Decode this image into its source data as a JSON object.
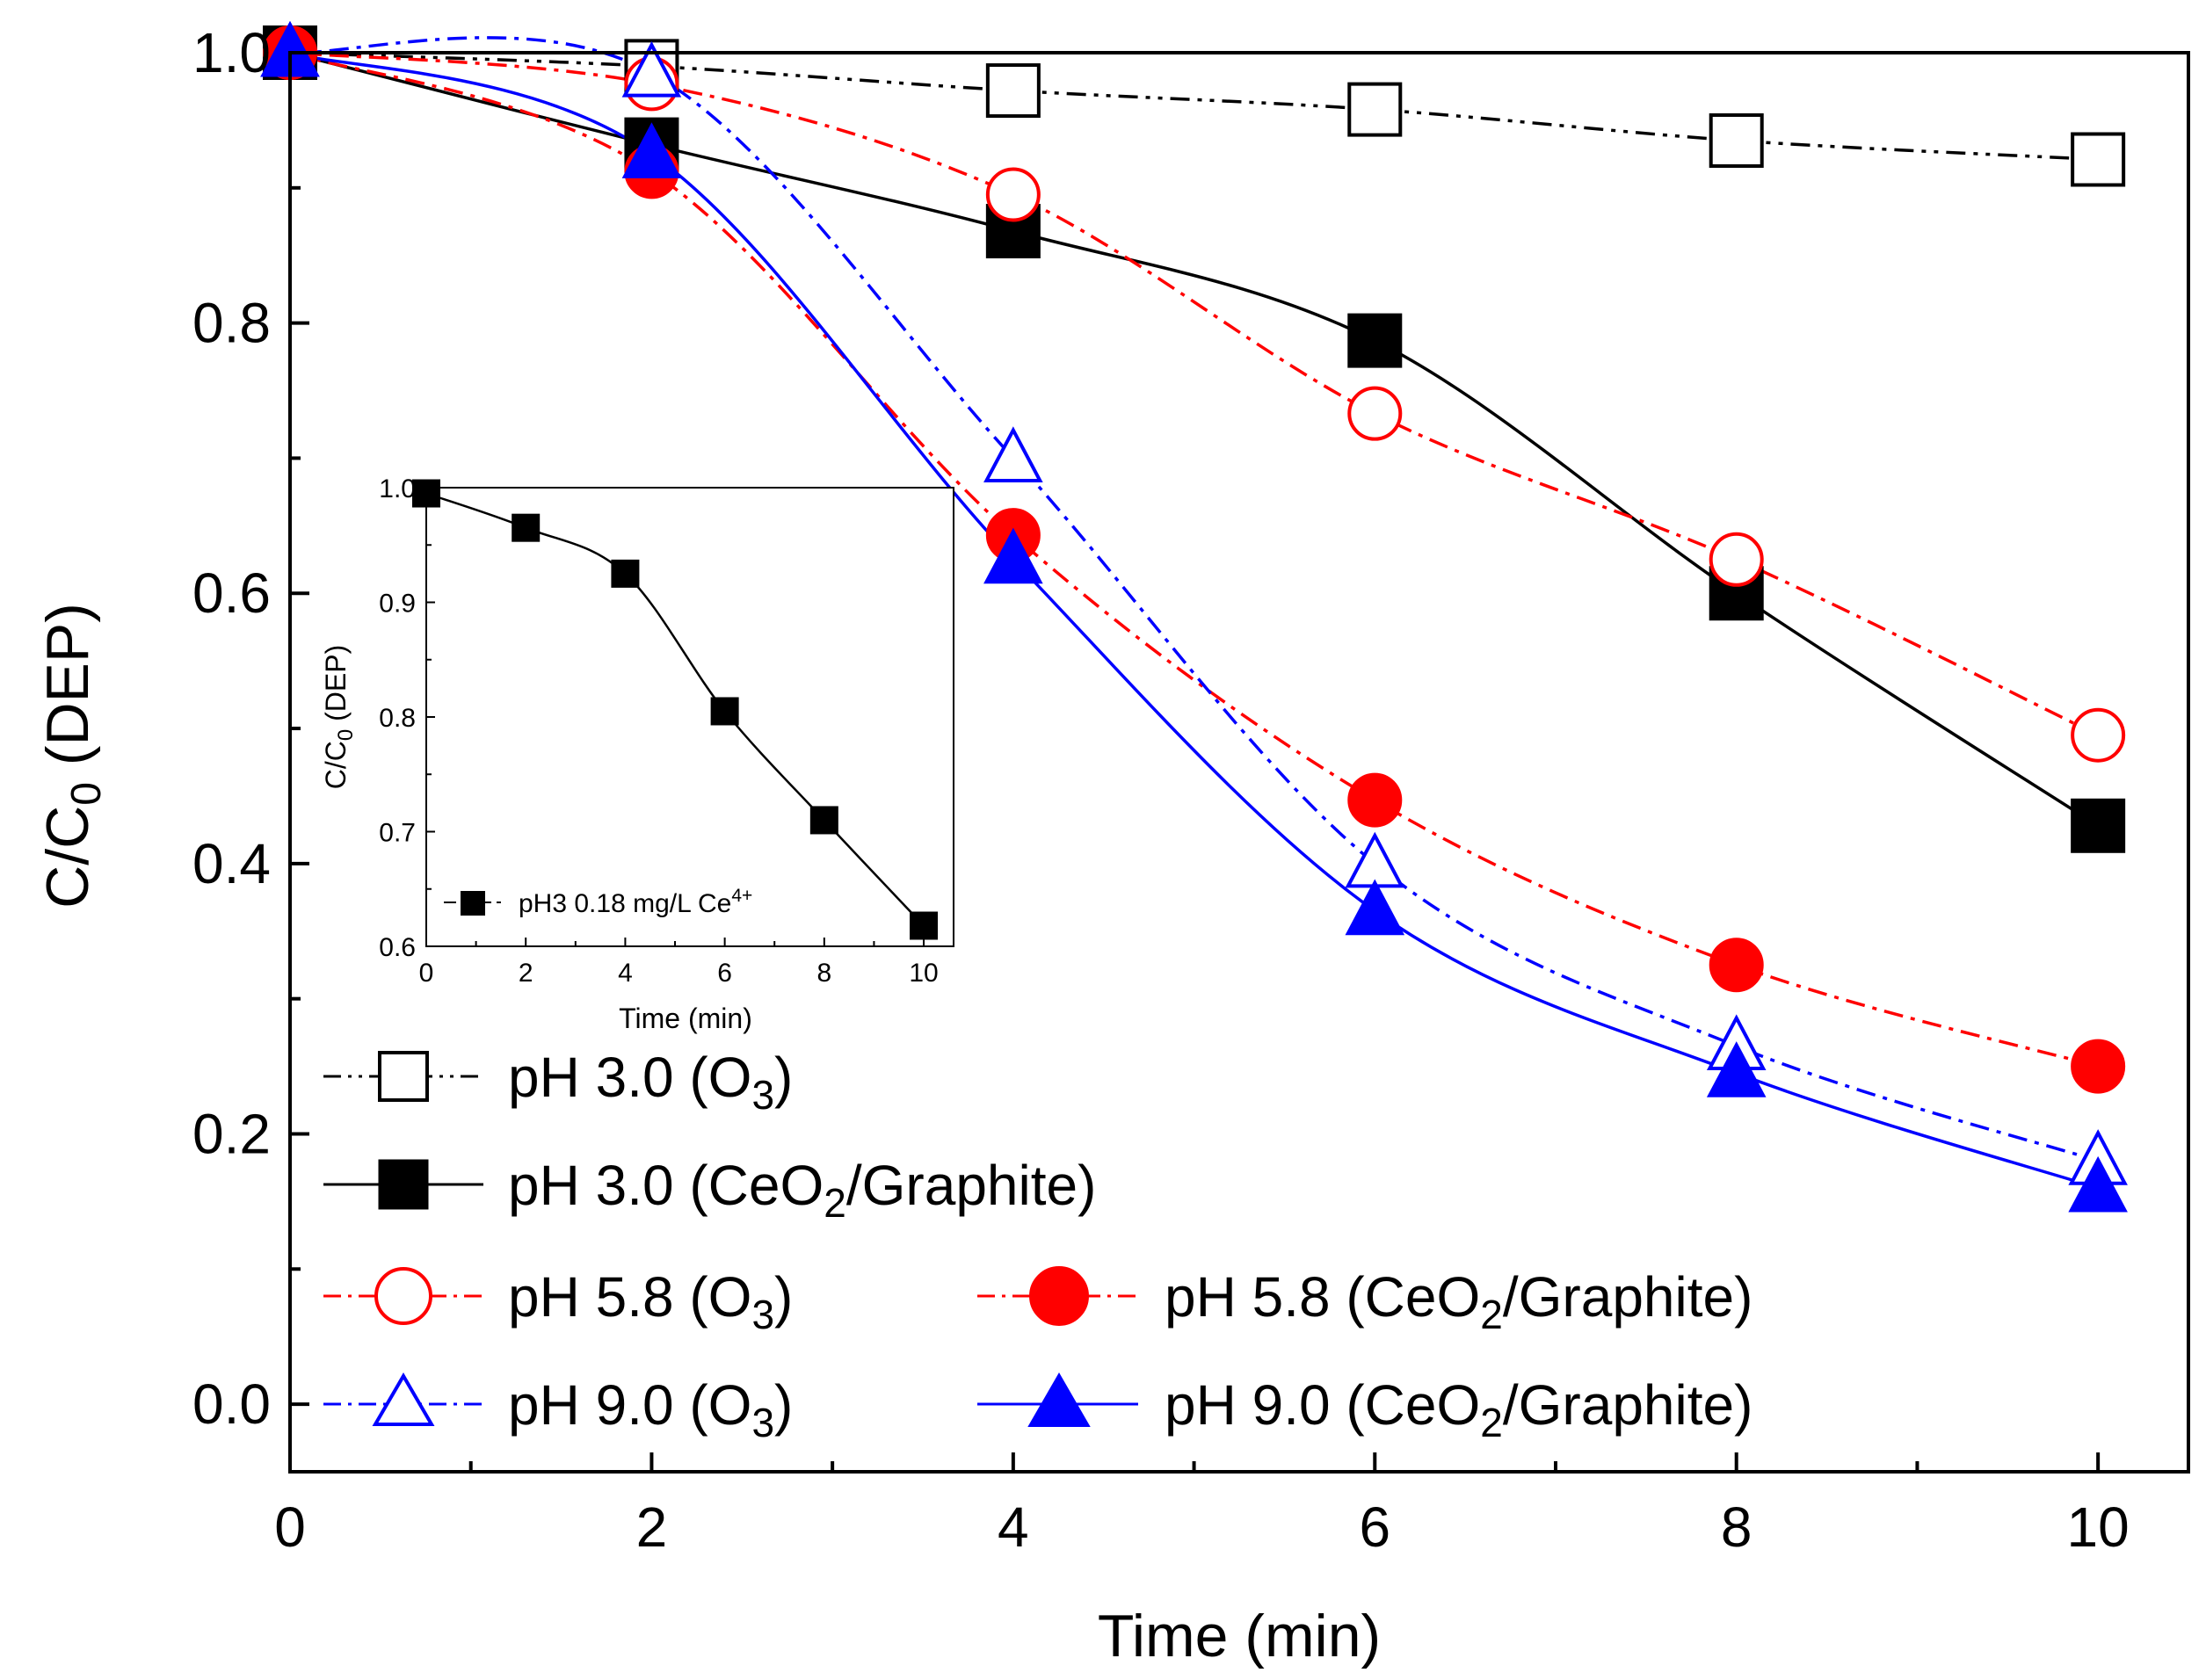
{
  "chart_data": [
    {
      "id": "main",
      "type": "line",
      "xlabel": "Time (min)",
      "ylabel_main": "C/C",
      "ylabel_sub": "0",
      "ylabel_suffix": " (DEP)",
      "xlim": [
        0,
        10.5
      ],
      "ylim": [
        -0.05,
        1.0
      ],
      "xticks": [
        0,
        2,
        4,
        6,
        8,
        10
      ],
      "xtick_labels": [
        "0",
        "2",
        "4",
        "6",
        "8",
        "10"
      ],
      "yticks": [
        0.0,
        0.2,
        0.4,
        0.6,
        0.8,
        1.0
      ],
      "ytick_labels": [
        "0.0",
        "0.2",
        "0.4",
        "0.6",
        "0.8",
        "1.0"
      ],
      "x": [
        0,
        2,
        4,
        6,
        8,
        10
      ],
      "series": [
        {
          "key": "ph30_o3",
          "name": "pH 3.0 (O3)",
          "label_main": "pH 3.0 (O",
          "label_sub": "3",
          "label_tail": ")",
          "color": "#000000",
          "marker": "square",
          "filled": false,
          "dash": "dashdotdot",
          "values": [
            1.0,
            0.99,
            0.972,
            0.958,
            0.935,
            0.921
          ]
        },
        {
          "key": "ph30_ceo2",
          "name": "pH 3.0 (CeO2/Graphite)",
          "label_main": "pH 3.0 (CeO",
          "label_sub": "2",
          "label_tail": "/Graphite)",
          "color": "#000000",
          "marker": "square",
          "filled": true,
          "dash": "solid",
          "values": [
            1.0,
            0.932,
            0.868,
            0.787,
            0.6,
            0.428
          ]
        },
        {
          "key": "ph58_o3",
          "name": "pH 5.8 (O3)",
          "label_main": "pH 5.8 (O",
          "label_sub": "3",
          "label_tail": ")",
          "color": "#ff0000",
          "marker": "circle",
          "filled": false,
          "dash": "dashdot",
          "values": [
            1.0,
            0.977,
            0.895,
            0.733,
            0.625,
            0.495
          ]
        },
        {
          "key": "ph58_ceo2",
          "name": "pH 5.8 (CeO2/Graphite)",
          "label_main": "pH 5.8 (CeO",
          "label_sub": "2",
          "label_tail": "/Graphite)",
          "color": "#ff0000",
          "marker": "circle",
          "filled": true,
          "dash": "dashdot",
          "values": [
            1.0,
            0.912,
            0.643,
            0.447,
            0.325,
            0.25
          ]
        },
        {
          "key": "ph90_o3",
          "name": "pH 9.0 (O3)",
          "label_main": "pH 9.0 (O",
          "label_sub": "3",
          "label_tail": ")",
          "color": "#0000ff",
          "marker": "triangle",
          "filled": false,
          "dash": "dashdot",
          "values": [
            1.0,
            0.985,
            0.7,
            0.4,
            0.265,
            0.18
          ]
        },
        {
          "key": "ph90_ceo2",
          "name": "pH 9.0 (CeO2/Graphite)",
          "label_main": "pH 9.0 (CeO",
          "label_sub": "2",
          "label_tail": "/Graphite)",
          "color": "#0000ff",
          "marker": "triangle",
          "filled": true,
          "dash": "solid",
          "values": [
            1.0,
            0.925,
            0.625,
            0.365,
            0.245,
            0.16
          ]
        }
      ],
      "legend": {
        "location": "lower-left",
        "columns": [
          [
            "ph30_o3",
            "ph30_ceo2",
            "ph58_o3",
            "ph90_o3"
          ],
          [
            "ph58_ceo2",
            "ph90_ceo2"
          ]
        ]
      },
      "grid": false
    },
    {
      "id": "inset",
      "type": "line",
      "xlabel": "Time (min)",
      "ylabel_main": "C/C",
      "ylabel_sub": "0",
      "ylabel_suffix": " (DEP)",
      "xlim": [
        0,
        10.6
      ],
      "ylim": [
        0.6,
        1.0
      ],
      "xticks": [
        0,
        2,
        4,
        6,
        8,
        10
      ],
      "xtick_labels": [
        "0",
        "2",
        "4",
        "6",
        "8",
        "10"
      ],
      "yticks": [
        0.6,
        0.7,
        0.8,
        0.9,
        1.0
      ],
      "ytick_labels": [
        "0.6",
        "0.7",
        "0.8",
        "0.9",
        "1.0"
      ],
      "x": [
        0,
        2,
        4,
        6,
        8,
        10
      ],
      "series": [
        {
          "key": "inset_ph3_ce4",
          "name": "pH3 0.18 mg/L Ce4+",
          "label_main": "pH3 0.18 mg/L Ce",
          "label_sup": "4+",
          "color": "#000000",
          "marker": "square",
          "filled": true,
          "dash": "solid",
          "values": [
            0.995,
            0.965,
            0.925,
            0.805,
            0.71,
            0.618
          ]
        }
      ],
      "legend": {
        "location": "bottom-left"
      },
      "grid": false
    }
  ]
}
